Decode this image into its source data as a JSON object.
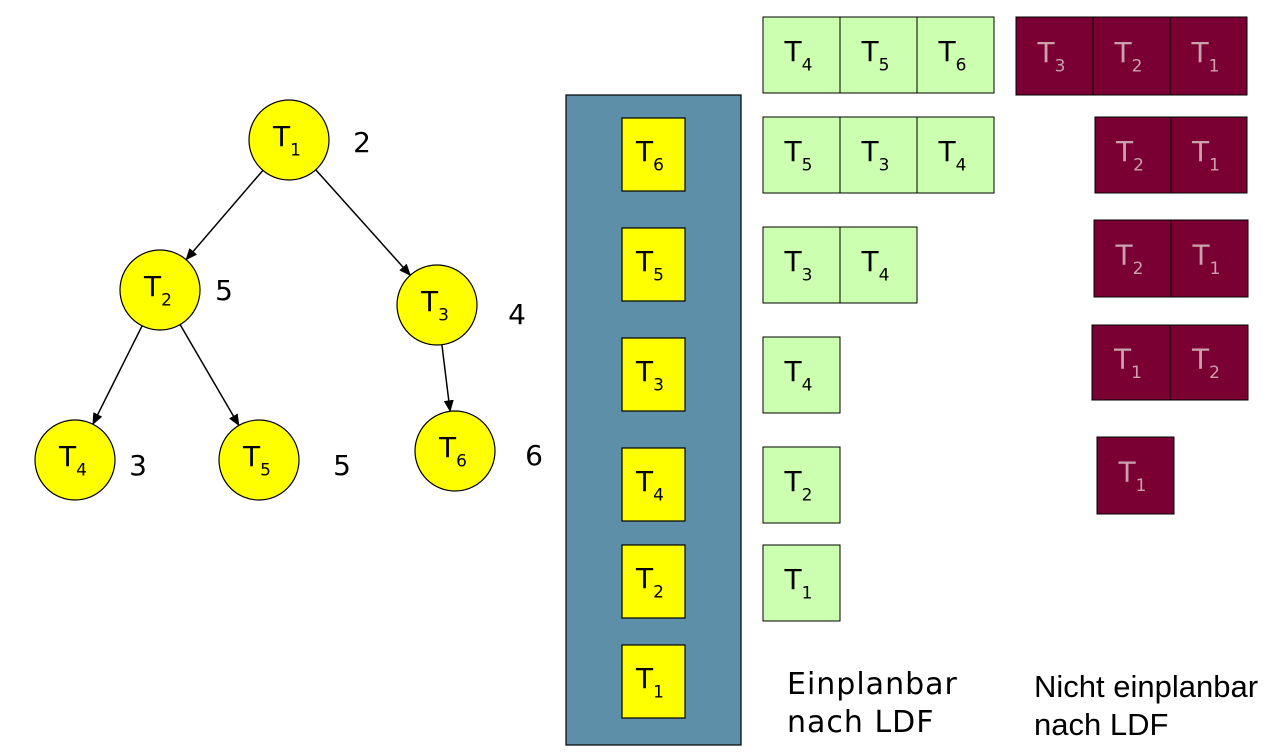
{
  "colors": {
    "node_fill": "#ffff00",
    "queue_panel": "#5e8fa8",
    "schedulable": "#ccffb0",
    "not_schedulable": "#7a0034",
    "not_schedulable_text": "#c9a2ae"
  },
  "tree": {
    "nodes": [
      {
        "id": "T1",
        "label": "T",
        "sub": "1",
        "deadline": "2"
      },
      {
        "id": "T2",
        "label": "T",
        "sub": "2",
        "deadline": "5"
      },
      {
        "id": "T3",
        "label": "T",
        "sub": "3",
        "deadline": "4"
      },
      {
        "id": "T4",
        "label": "T",
        "sub": "4",
        "deadline": "3"
      },
      {
        "id": "T5",
        "label": "T",
        "sub": "5",
        "deadline": "5"
      },
      {
        "id": "T6",
        "label": "T",
        "sub": "6",
        "deadline": "6"
      }
    ],
    "edges": [
      [
        "T1",
        "T2"
      ],
      [
        "T1",
        "T3"
      ],
      [
        "T2",
        "T4"
      ],
      [
        "T2",
        "T5"
      ],
      [
        "T3",
        "T6"
      ]
    ]
  },
  "queue": [
    {
      "label": "T",
      "sub": "6"
    },
    {
      "label": "T",
      "sub": "5"
    },
    {
      "label": "T",
      "sub": "3"
    },
    {
      "label": "T",
      "sub": "4"
    },
    {
      "label": "T",
      "sub": "2"
    },
    {
      "label": "T",
      "sub": "1"
    }
  ],
  "schedulable_rows": [
    [
      {
        "label": "T",
        "sub": "4"
      },
      {
        "label": "T",
        "sub": "5"
      },
      {
        "label": "T",
        "sub": "6"
      }
    ],
    [
      {
        "label": "T",
        "sub": "5"
      },
      {
        "label": "T",
        "sub": "3"
      },
      {
        "label": "T",
        "sub": "4"
      }
    ],
    [
      {
        "label": "T",
        "sub": "3"
      },
      {
        "label": "T",
        "sub": "4"
      }
    ],
    [
      {
        "label": "T",
        "sub": "4"
      }
    ],
    [
      {
        "label": "T",
        "sub": "2"
      }
    ],
    [
      {
        "label": "T",
        "sub": "1"
      }
    ]
  ],
  "not_schedulable_rows": [
    [
      {
        "label": "T",
        "sub": "3"
      },
      {
        "label": "T",
        "sub": "2"
      },
      {
        "label": "T",
        "sub": "1"
      }
    ],
    [
      {
        "label": "T",
        "sub": "2"
      },
      {
        "label": "T",
        "sub": "1"
      }
    ],
    [
      {
        "label": "T",
        "sub": "2"
      },
      {
        "label": "T",
        "sub": "1"
      }
    ],
    [
      {
        "label": "T",
        "sub": "1"
      },
      {
        "label": "T",
        "sub": "2"
      }
    ],
    [
      {
        "label": "T",
        "sub": "1"
      }
    ]
  ],
  "captions": {
    "schedulable_line1": "Einplanbar",
    "schedulable_line2": "nach LDF",
    "not_schedulable_line1": "Nicht einplanbar",
    "not_schedulable_line2": "nach LDF"
  }
}
